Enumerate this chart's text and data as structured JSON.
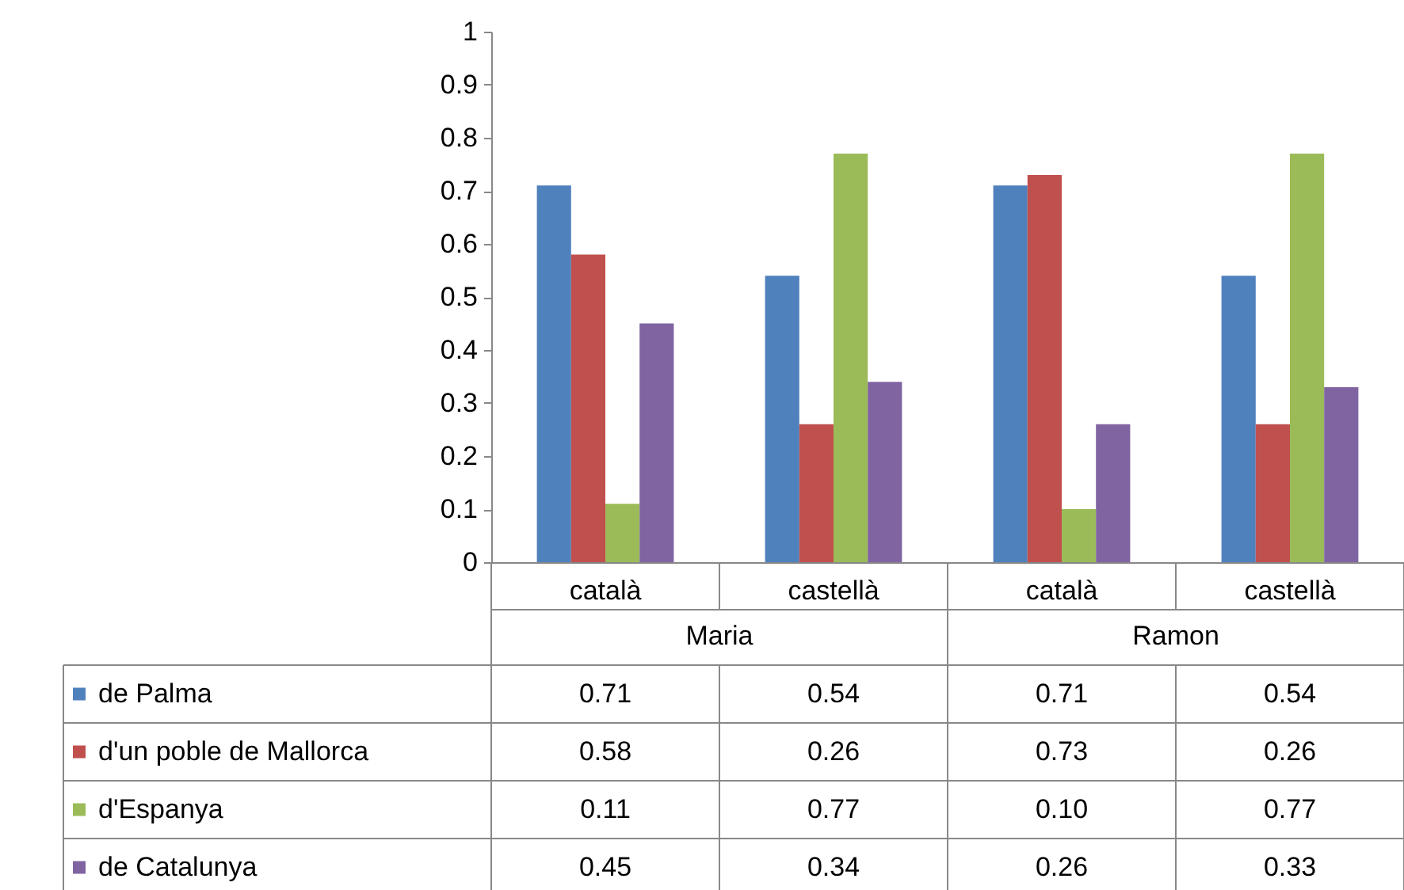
{
  "chart_data": {
    "type": "bar",
    "categories": [
      "català",
      "castellà",
      "català",
      "castellà"
    ],
    "annotations": [
      "Maria",
      "Ramon"
    ],
    "series": [
      {
        "name": "de Palma",
        "color": "#4f81bd",
        "values": [
          0.71,
          0.54,
          0.71,
          0.54
        ],
        "value_labels": [
          "0.71",
          "0.54",
          "0.71",
          "0.54"
        ]
      },
      {
        "name": "d'un poble de Mallorca",
        "color": "#c0504d",
        "values": [
          0.58,
          0.26,
          0.73,
          0.26
        ],
        "value_labels": [
          "0.58",
          "0.26",
          "0.73",
          "0.26"
        ]
      },
      {
        "name": "d'Espanya",
        "color": "#9bbb59",
        "values": [
          0.11,
          0.77,
          0.1,
          0.77
        ],
        "value_labels": [
          "0.11",
          "0.77",
          "0.10",
          "0.77"
        ]
      },
      {
        "name": "de Catalunya",
        "color": "#8064a2",
        "values": [
          0.45,
          0.34,
          0.26,
          0.33
        ],
        "value_labels": [
          "0.45",
          "0.34",
          "0.26",
          "0.33"
        ]
      }
    ],
    "ylim": [
      0,
      1
    ],
    "yticks": [
      0,
      0.1,
      0.2,
      0.3,
      0.4,
      0.5,
      0.6,
      0.7,
      0.8,
      0.9,
      1
    ],
    "grid": false,
    "legend": "bottom"
  }
}
